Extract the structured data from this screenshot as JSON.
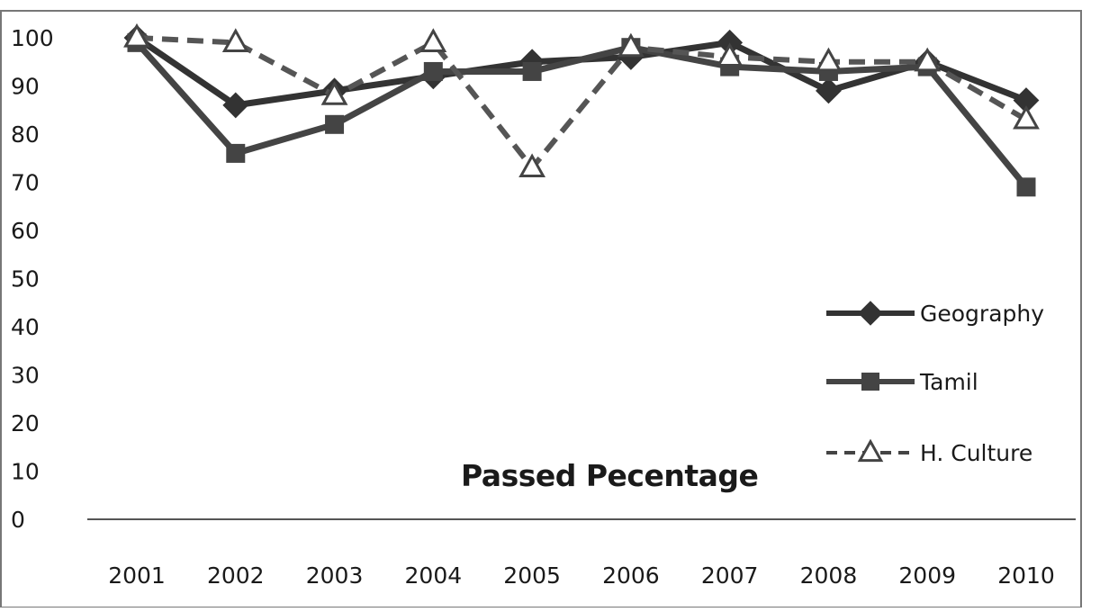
{
  "chart_data": {
    "type": "line",
    "title": "Passed Pecentage",
    "xlabel": "",
    "ylabel": "",
    "categories": [
      "2001",
      "2002",
      "2003",
      "2004",
      "2005",
      "2006",
      "2007",
      "2008",
      "2009",
      "2010"
    ],
    "y_ticks": [
      "0",
      "10",
      "20",
      "30",
      "40",
      "50",
      "60",
      "70",
      "80",
      "90",
      "100"
    ],
    "ylim": [
      0,
      100
    ],
    "grid": false,
    "legend_position": "right",
    "series": [
      {
        "name": "Geography",
        "values": [
          100,
          86,
          89,
          92,
          95,
          96,
          99,
          89,
          95,
          87
        ],
        "marker": "diamond",
        "line_style": "solid",
        "color": "#333333"
      },
      {
        "name": "Tamil",
        "values": [
          99,
          76,
          82,
          93,
          93,
          98,
          94,
          93,
          94,
          69
        ],
        "marker": "square",
        "line_style": "solid",
        "color": "#444444"
      },
      {
        "name": "H. Culture",
        "values": [
          100,
          99,
          88,
          99,
          73,
          98,
          96,
          95,
          95,
          83
        ],
        "marker": "triangle-open",
        "line_style": "dashed",
        "color": "#444444"
      }
    ]
  }
}
